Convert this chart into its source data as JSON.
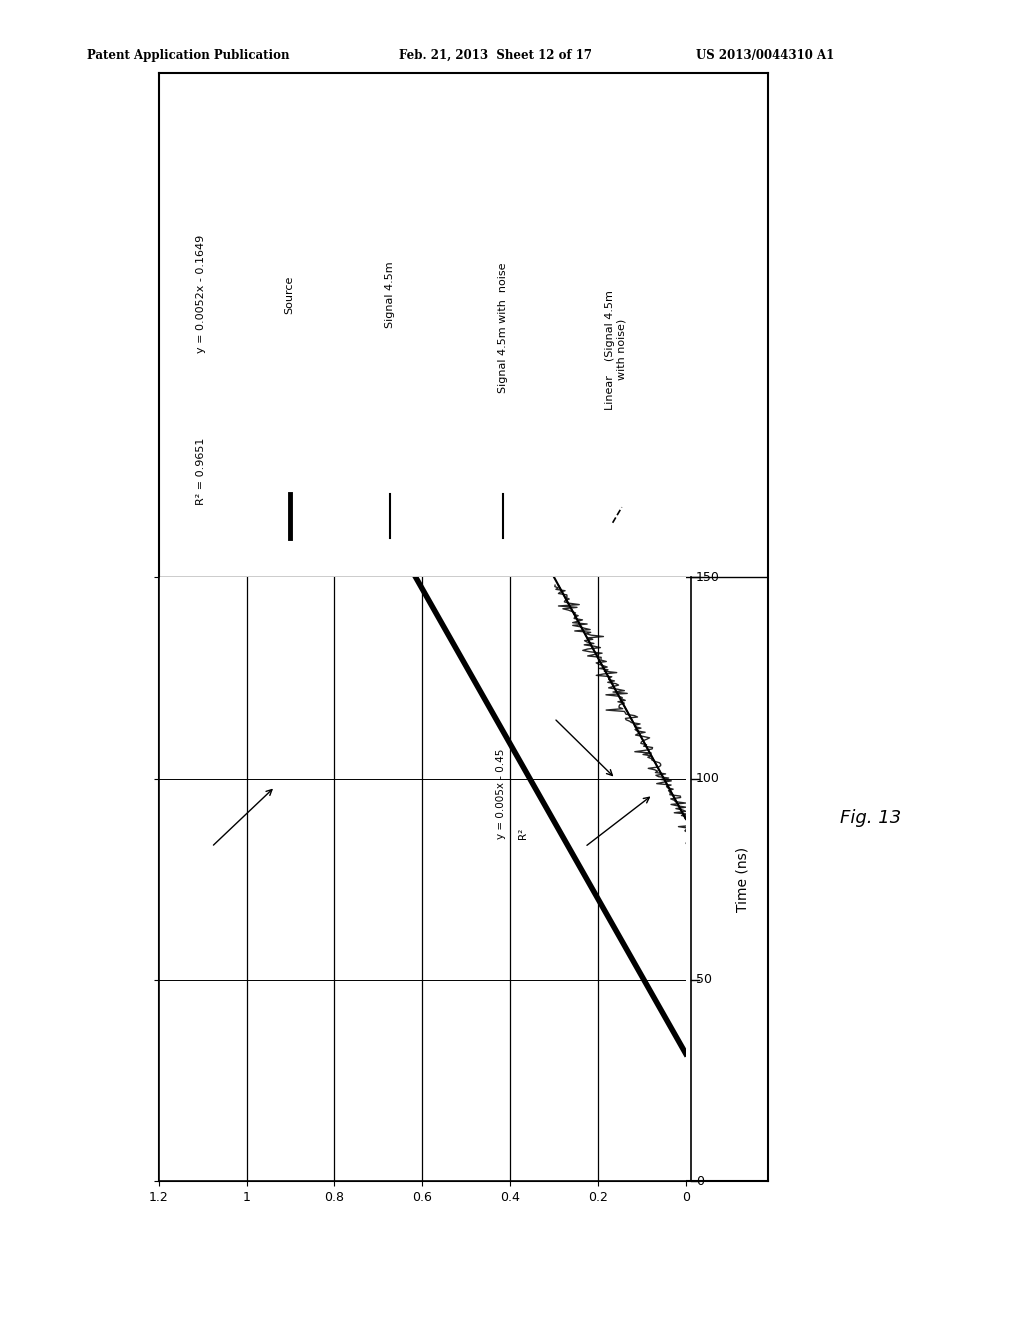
{
  "header_left": "Patent Application Publication",
  "header_center": "Feb. 21, 2013  Sheet 12 of 17",
  "header_right": "US 2013/0044310 A1",
  "fig_label": "Fig. 13",
  "time_label": "Time (ns)",
  "source_eq_line1": "y = 0.0052x - 0.1649",
  "source_eq_line2": "R² = 0.9651",
  "signal_eq": "y = 0.005x - 0.45",
  "signal_r2": "R²",
  "legend_entries": [
    "Source",
    "Signal 4.5m",
    "Signal 4.5m with  noise",
    "Linear    (Signal 4.5m\nwith noise)"
  ],
  "xlim_amp": [
    1.2,
    0
  ],
  "ylim_time": [
    0,
    150
  ],
  "amp_ticks": [
    0,
    0.2,
    0.4,
    0.6,
    0.8,
    1.0,
    1.2
  ],
  "time_ticks": [
    0,
    50,
    100,
    150
  ],
  "background_color": "#ffffff",
  "noise_seed": 42
}
